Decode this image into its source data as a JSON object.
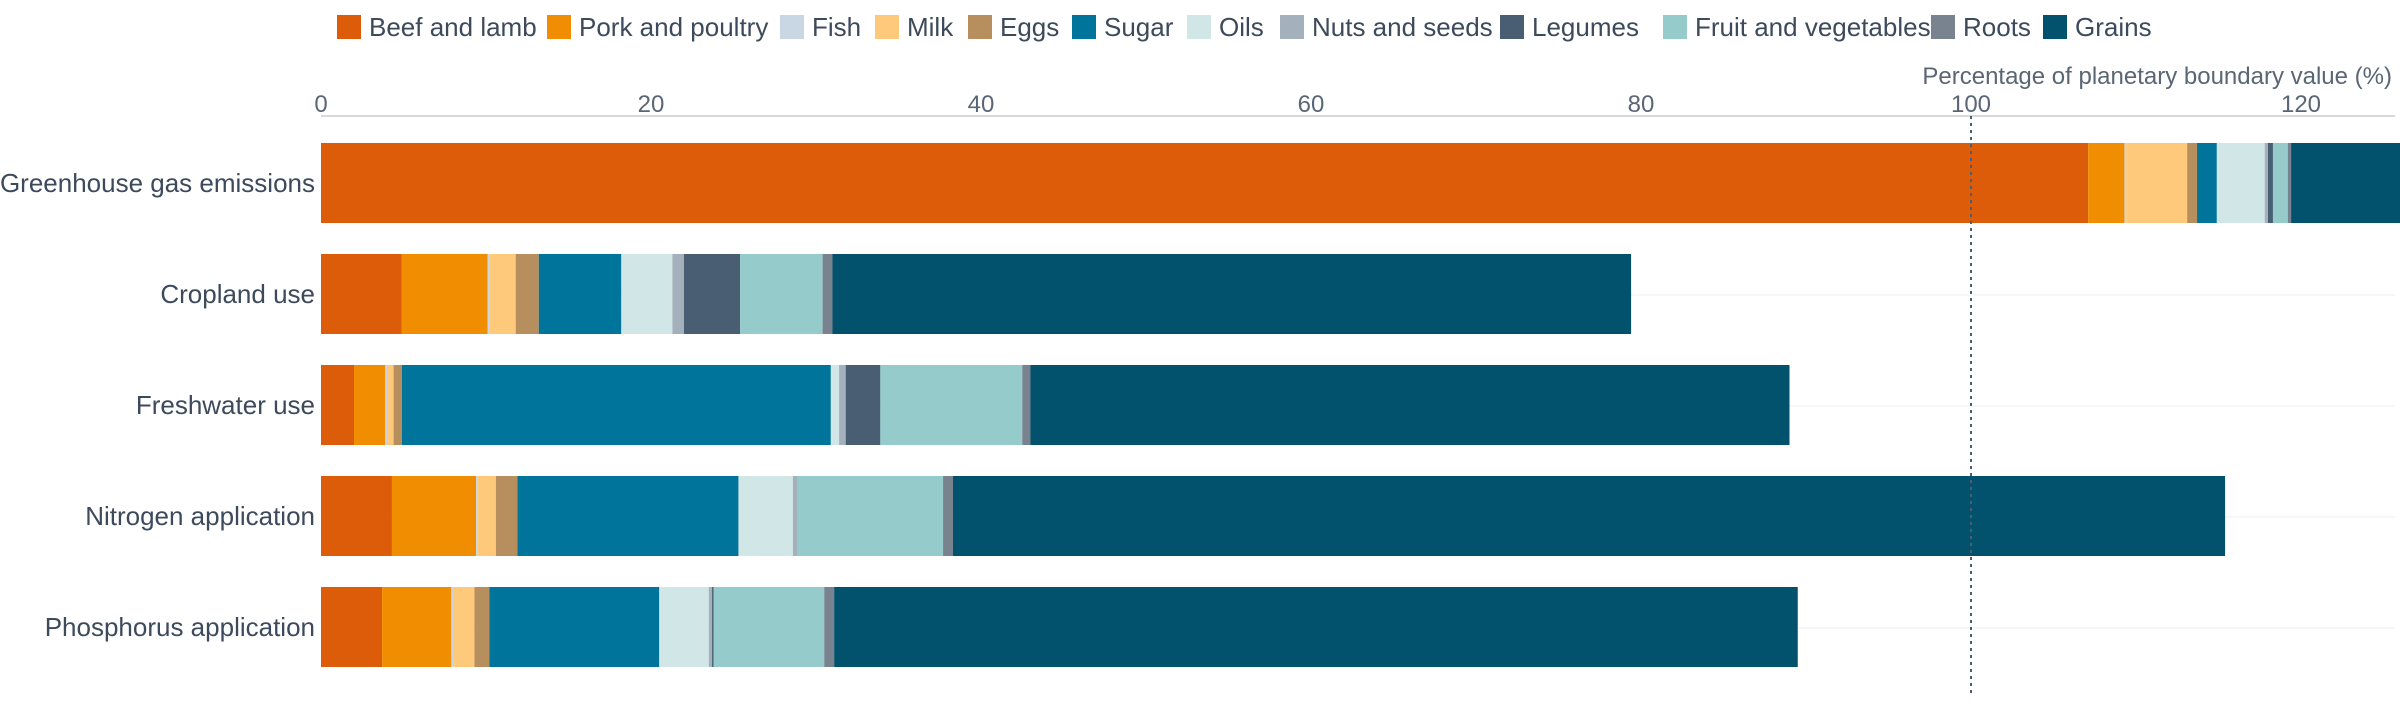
{
  "chart_data": {
    "type": "bar",
    "orientation": "horizontal",
    "stacked": true,
    "axis_title": "Percentage of planetary boundary value (%)",
    "x_ticks": [
      0,
      20,
      40,
      60,
      80,
      100,
      120
    ],
    "xlim": [
      0,
      126
    ],
    "reference_line": {
      "value": 100,
      "style": "dotted"
    },
    "grid": true,
    "legend_position": "top",
    "categories": [
      "Greenhouse gas emissions",
      "Cropland use",
      "Freshwater use",
      "Nitrogen application",
      "Phosphorus application"
    ],
    "series": [
      {
        "name": "Beef and lamb",
        "color": "#dd5c0a",
        "values": [
          107.1,
          4.9,
          2.0,
          4.3,
          3.7
        ]
      },
      {
        "name": "Pork and poultry",
        "color": "#f08d00",
        "values": [
          2.2,
          5.2,
          1.9,
          5.1,
          4.2
        ]
      },
      {
        "name": "Fish",
        "color": "#c9d6e3",
        "values": [
          0.1,
          0.1,
          0.1,
          0.1,
          0.1
        ]
      },
      {
        "name": "Milk",
        "color": "#fec97a",
        "values": [
          3.7,
          1.6,
          0.4,
          1.1,
          1.3
        ]
      },
      {
        "name": "Eggs",
        "color": "#b78f5f",
        "values": [
          0.6,
          1.4,
          0.5,
          1.3,
          0.9
        ]
      },
      {
        "name": "Sugar",
        "color": "#00749a",
        "values": [
          1.2,
          5.0,
          26.0,
          13.4,
          10.3
        ]
      },
      {
        "name": "Oils",
        "color": "#d1e6e6",
        "values": [
          2.9,
          3.1,
          0.5,
          3.3,
          3.0
        ]
      },
      {
        "name": "Nuts and seeds",
        "color": "#a5b0bd",
        "values": [
          0.2,
          0.7,
          0.4,
          0.3,
          0.2
        ]
      },
      {
        "name": "Legumes",
        "color": "#495e72",
        "values": [
          0.3,
          3.4,
          2.1,
          0.0,
          0.1
        ]
      },
      {
        "name": "Fruit and vegetables",
        "color": "#95cbca",
        "values": [
          0.9,
          5.0,
          8.6,
          8.8,
          6.7
        ]
      },
      {
        "name": "Roots",
        "color": "#78838f",
        "values": [
          0.2,
          0.6,
          0.5,
          0.6,
          0.6
        ]
      },
      {
        "name": "Grains",
        "color": "#02526e",
        "values": [
          6.6,
          48.4,
          46.0,
          77.1,
          58.4
        ]
      }
    ]
  }
}
